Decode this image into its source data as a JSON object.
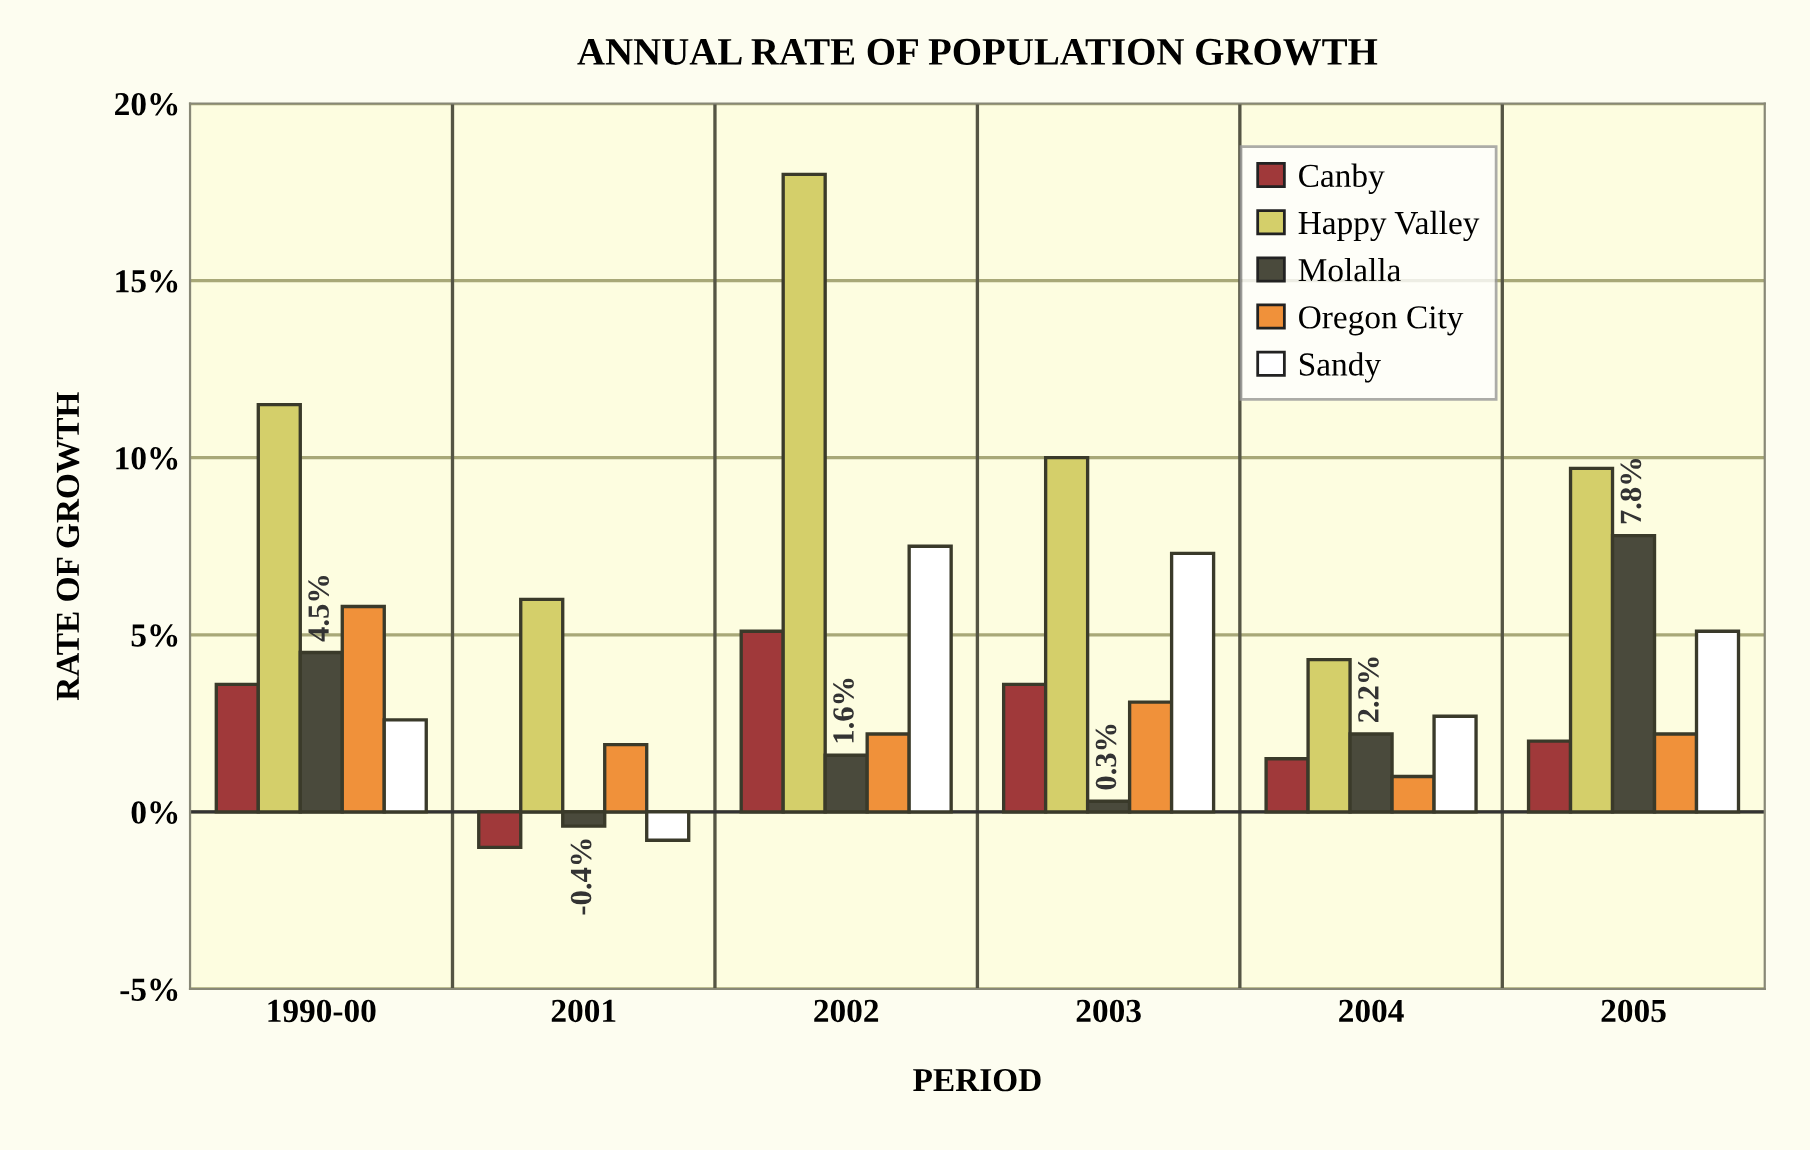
{
  "chart_data": {
    "type": "bar",
    "title": "ANNUAL RATE OF POPULATION GROWTH",
    "xlabel": "PERIOD",
    "ylabel": "RATE OF GROWTH",
    "categories": [
      "1990-00",
      "2001",
      "2002",
      "2003",
      "2004",
      "2005"
    ],
    "series": [
      {
        "name": "Canby",
        "color": "#a0393a",
        "values": [
          3.6,
          -1.0,
          5.1,
          3.6,
          1.5,
          2.0
        ]
      },
      {
        "name": "Happy Valley",
        "color": "#d4cf6a",
        "values": [
          11.5,
          6.0,
          18.0,
          10.0,
          4.3,
          9.7
        ]
      },
      {
        "name": "Molalla",
        "color": "#4a4a3c",
        "values": [
          4.5,
          -0.4,
          1.6,
          0.3,
          2.2,
          7.8
        ],
        "value_labels": [
          "4.5%",
          "-0.4%",
          "1.6%",
          "0.3%",
          "2.2%",
          "7.8%"
        ]
      },
      {
        "name": "Oregon City",
        "color": "#f0913a",
        "values": [
          5.8,
          1.9,
          2.2,
          3.1,
          1.0,
          2.2
        ]
      },
      {
        "name": "Sandy",
        "color": "#ffffff",
        "values": [
          2.6,
          -0.8,
          7.5,
          7.3,
          2.7,
          5.1
        ]
      }
    ],
    "ylim": [
      -5,
      20
    ],
    "yticks": [
      {
        "value": -5,
        "label": "-5%"
      },
      {
        "value": 0,
        "label": "0%"
      },
      {
        "value": 5,
        "label": "5%"
      },
      {
        "value": 10,
        "label": "10%"
      },
      {
        "value": 15,
        "label": "15%"
      },
      {
        "value": 20,
        "label": "20%"
      }
    ],
    "grid": true,
    "legend": "top right"
  }
}
